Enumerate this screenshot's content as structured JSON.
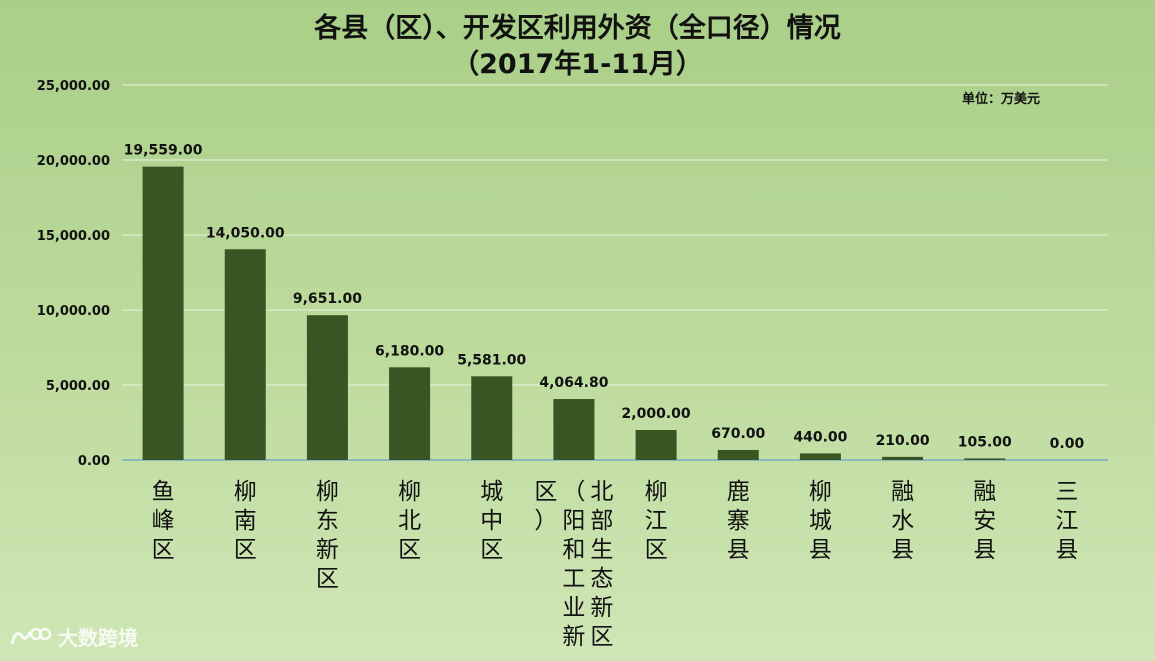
{
  "chart_data": {
    "type": "bar",
    "title_lines": [
      "各县（区）、开发区利用外资（全口径）情况",
      "（2017年1-11月）"
    ],
    "unit_note": "单位：万美元",
    "categories": [
      "鱼峰区",
      "柳南区",
      "柳东新区",
      "柳北区",
      "城中区",
      "北部生态新区（阳和工业新区）",
      "柳江区",
      "鹿寨县",
      "柳城县",
      "融水县",
      "融安县",
      "三江县"
    ],
    "values": [
      19559,
      14050,
      9651,
      6180,
      5581,
      4064.8,
      2000,
      670,
      440,
      210,
      105,
      0
    ],
    "value_labels": [
      "19,559.00",
      "14,050.00",
      "9,651.00",
      "6,180.00",
      "5,581.00",
      "4,064.80",
      "2,000.00",
      "670.00",
      "440.00",
      "210.00",
      "105.00",
      "0.00"
    ],
    "yticks": [
      0,
      5000,
      10000,
      15000,
      20000,
      25000
    ],
    "ytick_labels": [
      "0.00",
      "5,000.00",
      "10,000.00",
      "15,000.00",
      "20,000.00",
      "25,000.00"
    ],
    "ylim": [
      0,
      25000
    ],
    "grid": true,
    "legend": "none",
    "bar_color": "#375623"
  },
  "watermark": {
    "text": "大数跨境",
    "icon": "logo-icon"
  }
}
